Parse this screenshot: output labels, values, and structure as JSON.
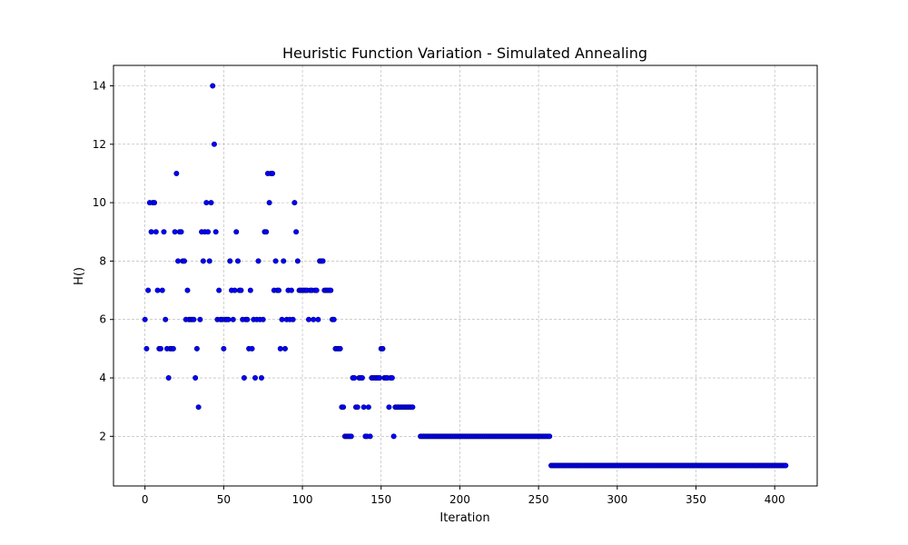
{
  "chart_data": {
    "type": "scatter",
    "title": "Heuristic Function Variation - Simulated Annealing",
    "xlabel": "Iteration",
    "ylabel": "H()",
    "xlim": [
      -20,
      427
    ],
    "ylim": [
      0.3,
      14.7
    ],
    "x_ticks": [
      0,
      50,
      100,
      150,
      200,
      250,
      300,
      350,
      400
    ],
    "y_ticks": [
      2,
      4,
      6,
      8,
      10,
      12,
      14
    ],
    "grid": true,
    "marker_color": "#0000ff",
    "marker_edge_color": "#00007a",
    "series": [
      {
        "points": [
          [
            0,
            6
          ],
          [
            1,
            5
          ],
          [
            2,
            7
          ],
          [
            3,
            10
          ],
          [
            4,
            9
          ],
          [
            5,
            10
          ],
          [
            6,
            10
          ],
          [
            7,
            9
          ],
          [
            8,
            7
          ],
          [
            9,
            5
          ],
          [
            10,
            5
          ],
          [
            11,
            7
          ],
          [
            12,
            9
          ],
          [
            13,
            6
          ],
          [
            14,
            5
          ],
          [
            15,
            4
          ],
          [
            16,
            5
          ],
          [
            17,
            5
          ],
          [
            18,
            5
          ],
          [
            19,
            9
          ],
          [
            20,
            11
          ],
          [
            21,
            8
          ],
          [
            22,
            9
          ],
          [
            23,
            9
          ],
          [
            24,
            8
          ],
          [
            25,
            8
          ],
          [
            26,
            6
          ],
          [
            27,
            7
          ],
          [
            28,
            6
          ],
          [
            29,
            6
          ],
          [
            30,
            6
          ],
          [
            31,
            6
          ],
          [
            32,
            4
          ],
          [
            33,
            5
          ],
          [
            34,
            3
          ],
          [
            35,
            6
          ],
          [
            36,
            9
          ],
          [
            37,
            8
          ],
          [
            38,
            9
          ],
          [
            39,
            10
          ],
          [
            40,
            9
          ],
          [
            41,
            8
          ],
          [
            42,
            10
          ],
          [
            43,
            14
          ],
          [
            44,
            12
          ],
          [
            45,
            9
          ],
          [
            46,
            6
          ],
          [
            47,
            7
          ],
          [
            48,
            6
          ],
          [
            49,
            6
          ],
          [
            50,
            5
          ],
          [
            51,
            6
          ],
          [
            52,
            6
          ],
          [
            53,
            6
          ],
          [
            54,
            8
          ],
          [
            55,
            7
          ],
          [
            56,
            6
          ],
          [
            57,
            7
          ],
          [
            58,
            9
          ],
          [
            59,
            8
          ],
          [
            60,
            7
          ],
          [
            61,
            7
          ],
          [
            62,
            6
          ],
          [
            63,
            4
          ],
          [
            64,
            6
          ],
          [
            65,
            6
          ],
          [
            66,
            5
          ],
          [
            67,
            7
          ],
          [
            68,
            5
          ],
          [
            69,
            6
          ],
          [
            70,
            4
          ],
          [
            71,
            6
          ],
          [
            72,
            8
          ],
          [
            73,
            6
          ],
          [
            74,
            4
          ],
          [
            75,
            6
          ],
          [
            76,
            9
          ],
          [
            77,
            9
          ],
          [
            78,
            11
          ],
          [
            79,
            10
          ],
          [
            80,
            11
          ],
          [
            81,
            11
          ],
          [
            82,
            7
          ],
          [
            83,
            8
          ],
          [
            84,
            7
          ],
          [
            85,
            7
          ],
          [
            86,
            5
          ],
          [
            87,
            6
          ],
          [
            88,
            8
          ],
          [
            89,
            5
          ],
          [
            90,
            6
          ],
          [
            91,
            7
          ],
          [
            92,
            6
          ],
          [
            93,
            7
          ],
          [
            94,
            6
          ],
          [
            95,
            10
          ],
          [
            96,
            9
          ],
          [
            97,
            8
          ],
          [
            98,
            7
          ],
          [
            99,
            7
          ],
          [
            100,
            7
          ],
          [
            101,
            7
          ],
          [
            102,
            7
          ],
          [
            103,
            7
          ],
          [
            104,
            6
          ],
          [
            105,
            7
          ],
          [
            106,
            7
          ],
          [
            107,
            6
          ],
          [
            108,
            7
          ],
          [
            109,
            7
          ],
          [
            110,
            6
          ],
          [
            111,
            8
          ],
          [
            112,
            8
          ],
          [
            113,
            8
          ],
          [
            114,
            7
          ],
          [
            115,
            7
          ],
          [
            116,
            7
          ],
          [
            117,
            7
          ],
          [
            118,
            7
          ],
          [
            119,
            6
          ],
          [
            120,
            6
          ],
          [
            121,
            5
          ],
          [
            122,
            5
          ],
          [
            123,
            5
          ],
          [
            124,
            5
          ],
          [
            125,
            3
          ],
          [
            126,
            3
          ],
          [
            127,
            2
          ],
          [
            128,
            2
          ],
          [
            129,
            2
          ],
          [
            130,
            2
          ],
          [
            131,
            2
          ],
          [
            132,
            4
          ],
          [
            133,
            4
          ],
          [
            134,
            3
          ],
          [
            135,
            3
          ],
          [
            136,
            4
          ],
          [
            137,
            4
          ],
          [
            138,
            4
          ],
          [
            139,
            3
          ],
          [
            140,
            2
          ],
          [
            141,
            2
          ],
          [
            142,
            3
          ],
          [
            143,
            2
          ],
          [
            144,
            4
          ],
          [
            145,
            4
          ],
          [
            146,
            4
          ],
          [
            147,
            4
          ],
          [
            148,
            4
          ],
          [
            149,
            4
          ],
          [
            150,
            5
          ],
          [
            151,
            5
          ],
          [
            152,
            4
          ],
          [
            153,
            4
          ],
          [
            154,
            4
          ],
          [
            155,
            3
          ],
          [
            156,
            4
          ],
          [
            157,
            4
          ],
          [
            158,
            2
          ],
          [
            159,
            3
          ],
          [
            160,
            3
          ],
          [
            161,
            3
          ],
          [
            162,
            3
          ],
          [
            163,
            3
          ],
          [
            164,
            3
          ],
          [
            165,
            3
          ],
          [
            166,
            3
          ],
          [
            167,
            3
          ],
          [
            168,
            3
          ],
          [
            169,
            3
          ],
          [
            170,
            3
          ]
        ],
        "ranges": [
          {
            "from": 175,
            "to": 257,
            "y": 2
          },
          {
            "from": 258,
            "to": 407,
            "y": 1
          }
        ]
      }
    ]
  }
}
